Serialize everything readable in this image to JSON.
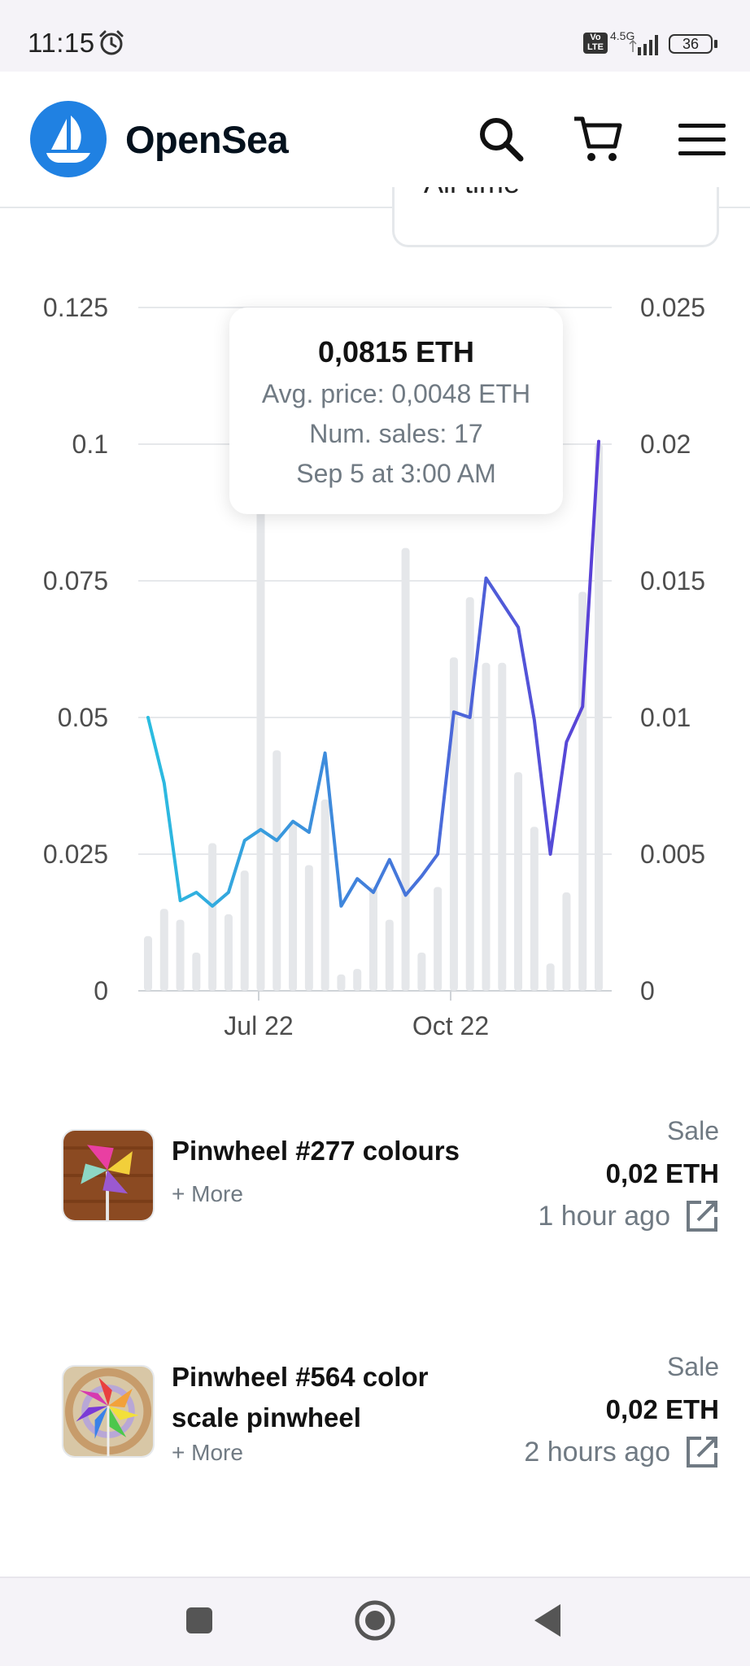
{
  "status_bar": {
    "time": "11:15",
    "network": "4.5G",
    "volte": "Vo LTE",
    "battery": "36",
    "icons": [
      "alarm-icon",
      "signal-icon",
      "battery-icon"
    ]
  },
  "header": {
    "brand": "OpenSea",
    "brand_color": "#2081e2",
    "icons": [
      "search-icon",
      "cart-icon",
      "menu-icon"
    ]
  },
  "period_select": {
    "value": "All time"
  },
  "chart": {
    "left_ticks": [
      "0.125",
      "0.1",
      "0.075",
      "0.05",
      "0.025",
      "0"
    ],
    "right_ticks": [
      "0.025",
      "0.02",
      "0.015",
      "0.01",
      "0.005",
      "0"
    ],
    "x_ticks": [
      "Jul 22",
      "Oct 22"
    ],
    "tooltip": {
      "value": "0,0815 ETH",
      "avg_price": "Avg. price: 0,0048 ETH",
      "num_sales": "Num. sales: 17",
      "date": "Sep 5 at 3:00 AM"
    }
  },
  "chart_data": {
    "type": "bar",
    "series": [
      {
        "name": "Volume",
        "axis": "left",
        "type": "bar",
        "values": [
          0.01,
          0.015,
          0.013,
          0.007,
          0.027,
          0.014,
          0.022,
          0.1,
          0.044,
          0.031,
          0.023,
          0.035,
          0.003,
          0.004,
          0.019,
          0.013,
          0.081,
          0.007,
          0.019,
          0.061,
          0.072,
          0.06,
          0.06,
          0.04,
          0.03,
          0.005,
          0.018,
          0.073,
          0.1
        ]
      },
      {
        "name": "Avg. price",
        "axis": "right",
        "type": "line",
        "values": [
          0.01,
          0.0076,
          0.0033,
          0.0036,
          0.0031,
          0.0036,
          0.0055,
          0.0059,
          0.0055,
          0.0062,
          0.0058,
          0.0087,
          0.0031,
          0.0041,
          0.0036,
          0.0048,
          0.0035,
          0.0042,
          0.005,
          0.0102,
          0.01,
          0.0151,
          0.0142,
          0.0133,
          0.0099,
          0.005,
          0.0091,
          0.0104,
          0.0201
        ]
      }
    ],
    "x_ticks": [
      "Jul 22",
      "Oct 22"
    ],
    "ylim_left": [
      0,
      0.125
    ],
    "ylim_right": [
      0,
      0.025
    ],
    "grid": true,
    "line_gradient": [
      "#2bbde0",
      "#5a3fd6"
    ],
    "bar_color": "#e5e7ea"
  },
  "activity": [
    {
      "name": "Pinwheel #277 colours",
      "more": "+ More",
      "type": "Sale",
      "price": "0,02 ETH",
      "time": "1 hour ago"
    },
    {
      "name": "Pinwheel #564 color scale pinwheel",
      "more": "+ More",
      "type": "Sale",
      "price": "0,02 ETH",
      "time": "2 hours ago"
    }
  ],
  "navbar": {
    "icons": [
      "recents-icon",
      "home-icon",
      "back-icon"
    ]
  }
}
